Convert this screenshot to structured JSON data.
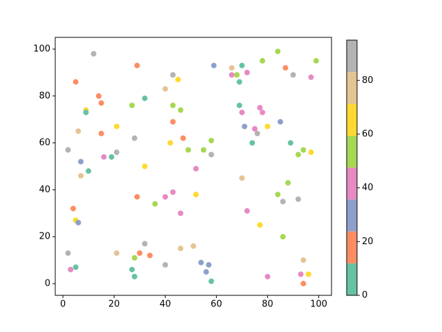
{
  "chart_data": {
    "type": "scatter",
    "x": [
      12,
      29,
      43,
      59,
      66,
      70,
      78,
      84,
      87,
      90,
      99,
      97,
      66,
      68,
      72,
      69,
      45,
      5,
      40,
      14,
      32,
      15,
      27,
      43,
      69,
      77,
      46,
      9,
      9,
      70,
      78,
      43,
      85,
      80,
      21,
      71,
      75,
      6,
      76,
      15,
      47,
      28,
      58,
      74,
      42,
      89,
      2,
      49,
      55,
      94,
      97,
      21,
      92,
      58,
      16,
      19,
      7,
      32,
      52,
      10,
      7,
      70,
      88,
      43,
      52,
      84,
      40,
      29,
      92,
      86,
      36,
      4,
      72,
      46,
      5,
      6,
      77,
      86,
      32,
      51,
      46,
      2,
      21,
      30,
      34,
      28,
      54,
      94,
      57,
      40,
      5,
      3,
      27,
      56,
      93,
      96,
      80,
      28,
      58,
      94
    ],
    "y": [
      98,
      93,
      89,
      93,
      92,
      93,
      95,
      99,
      92,
      89,
      95,
      88,
      89,
      89,
      90,
      86,
      87,
      86,
      83,
      80,
      79,
      77,
      76,
      76,
      76,
      75,
      74,
      74,
      73,
      73,
      73,
      69,
      69,
      67,
      67,
      67,
      66,
      65,
      64,
      64,
      62,
      62,
      61,
      60,
      60,
      60,
      57,
      57,
      57,
      57,
      56,
      56,
      55,
      55,
      54,
      54,
      52,
      50,
      49,
      48,
      46,
      45,
      43,
      39,
      38,
      38,
      37,
      37,
      36,
      35,
      34,
      32,
      31,
      30,
      27,
      26,
      25,
      20,
      17,
      16,
      15,
      13,
      13,
      13,
      12,
      11,
      9,
      10,
      8,
      8,
      7,
      6,
      6,
      5,
      4,
      4,
      3,
      3,
      1,
      0
    ],
    "c": [
      89,
      18,
      89,
      30,
      77,
      5,
      53,
      53,
      18,
      89,
      53,
      42,
      42,
      53,
      42,
      5,
      65,
      18,
      77,
      18,
      5,
      18,
      53,
      53,
      5,
      42,
      53,
      65,
      5,
      42,
      42,
      18,
      30,
      65,
      65,
      30,
      42,
      77,
      89,
      18,
      18,
      89,
      53,
      5,
      65,
      5,
      89,
      53,
      53,
      53,
      65,
      89,
      53,
      89,
      42,
      5,
      30,
      65,
      42,
      5,
      77,
      77,
      53,
      42,
      65,
      53,
      42,
      18,
      89,
      89,
      53,
      18,
      42,
      42,
      65,
      30,
      65,
      53,
      89,
      77,
      77,
      89,
      77,
      18,
      18,
      53,
      30,
      77,
      30,
      89,
      5,
      42,
      5,
      30,
      42,
      65,
      42,
      5,
      5,
      18
    ],
    "colormap": [
      "#66c2a5",
      "#fc8d62",
      "#8da0cb",
      "#e78ac3",
      "#a6d854",
      "#ffd92f",
      "#e5c494",
      "#b3b3b3"
    ],
    "clim": [
      0,
      95
    ],
    "cticks": [
      0,
      20,
      40,
      60,
      80
    ],
    "xlim": [
      -3,
      105
    ],
    "ylim": [
      -5,
      105
    ],
    "xticks": [
      0,
      20,
      40,
      60,
      80,
      100
    ],
    "yticks": [
      0,
      20,
      40,
      60,
      80,
      100
    ]
  }
}
